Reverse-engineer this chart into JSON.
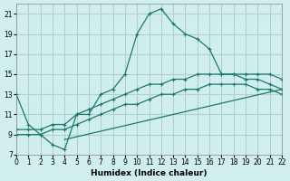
{
  "xlabel": "Humidex (Indice chaleur)",
  "background_color": "#d0eeee",
  "grid_color": "#b0d0d0",
  "line_color": "#1a7a6a",
  "xlim": [
    0,
    22
  ],
  "ylim": [
    7,
    22
  ],
  "xticks": [
    0,
    1,
    2,
    3,
    4,
    5,
    6,
    7,
    8,
    9,
    10,
    11,
    12,
    13,
    14,
    15,
    16,
    17,
    18,
    19,
    20,
    21,
    22
  ],
  "yticks": [
    7,
    9,
    11,
    13,
    15,
    17,
    19,
    21
  ],
  "line1_x": [
    0,
    1,
    2,
    3,
    4,
    5,
    6,
    7,
    8,
    9,
    10,
    11,
    12,
    13,
    14,
    15,
    16,
    17,
    18,
    19,
    20,
    21,
    22
  ],
  "line1_y": [
    13,
    10,
    9,
    8,
    7.5,
    11,
    11,
    13,
    13.5,
    15,
    19,
    21,
    21.5,
    20,
    19,
    18.5,
    17.5,
    15,
    15,
    14.5,
    14.5,
    14,
    13.5
  ],
  "line2_x": [
    0,
    1,
    2,
    3,
    4,
    5,
    6,
    7,
    8,
    9,
    10,
    11,
    12,
    13,
    14,
    15,
    16,
    17,
    18,
    19,
    20,
    21,
    22
  ],
  "line2_y": [
    9.5,
    9.5,
    9.5,
    10,
    10,
    11,
    11.5,
    12,
    12.5,
    13,
    13.5,
    14,
    14,
    14.5,
    14.5,
    15,
    15,
    15,
    15,
    15,
    15,
    15,
    14.5
  ],
  "line3_x": [
    0,
    1,
    2,
    3,
    4,
    5,
    6,
    7,
    8,
    9,
    10,
    11,
    12,
    13,
    14,
    15,
    16,
    17,
    18,
    19,
    20,
    21,
    22
  ],
  "line3_y": [
    9,
    9,
    9,
    9.5,
    9.5,
    10,
    10.5,
    11,
    11.5,
    12,
    12,
    12.5,
    13,
    13,
    13.5,
    13.5,
    14,
    14,
    14,
    14,
    13.5,
    13.5,
    13.0
  ],
  "line4_x": [
    4,
    22
  ],
  "line4_y": [
    8.5,
    13.5
  ]
}
